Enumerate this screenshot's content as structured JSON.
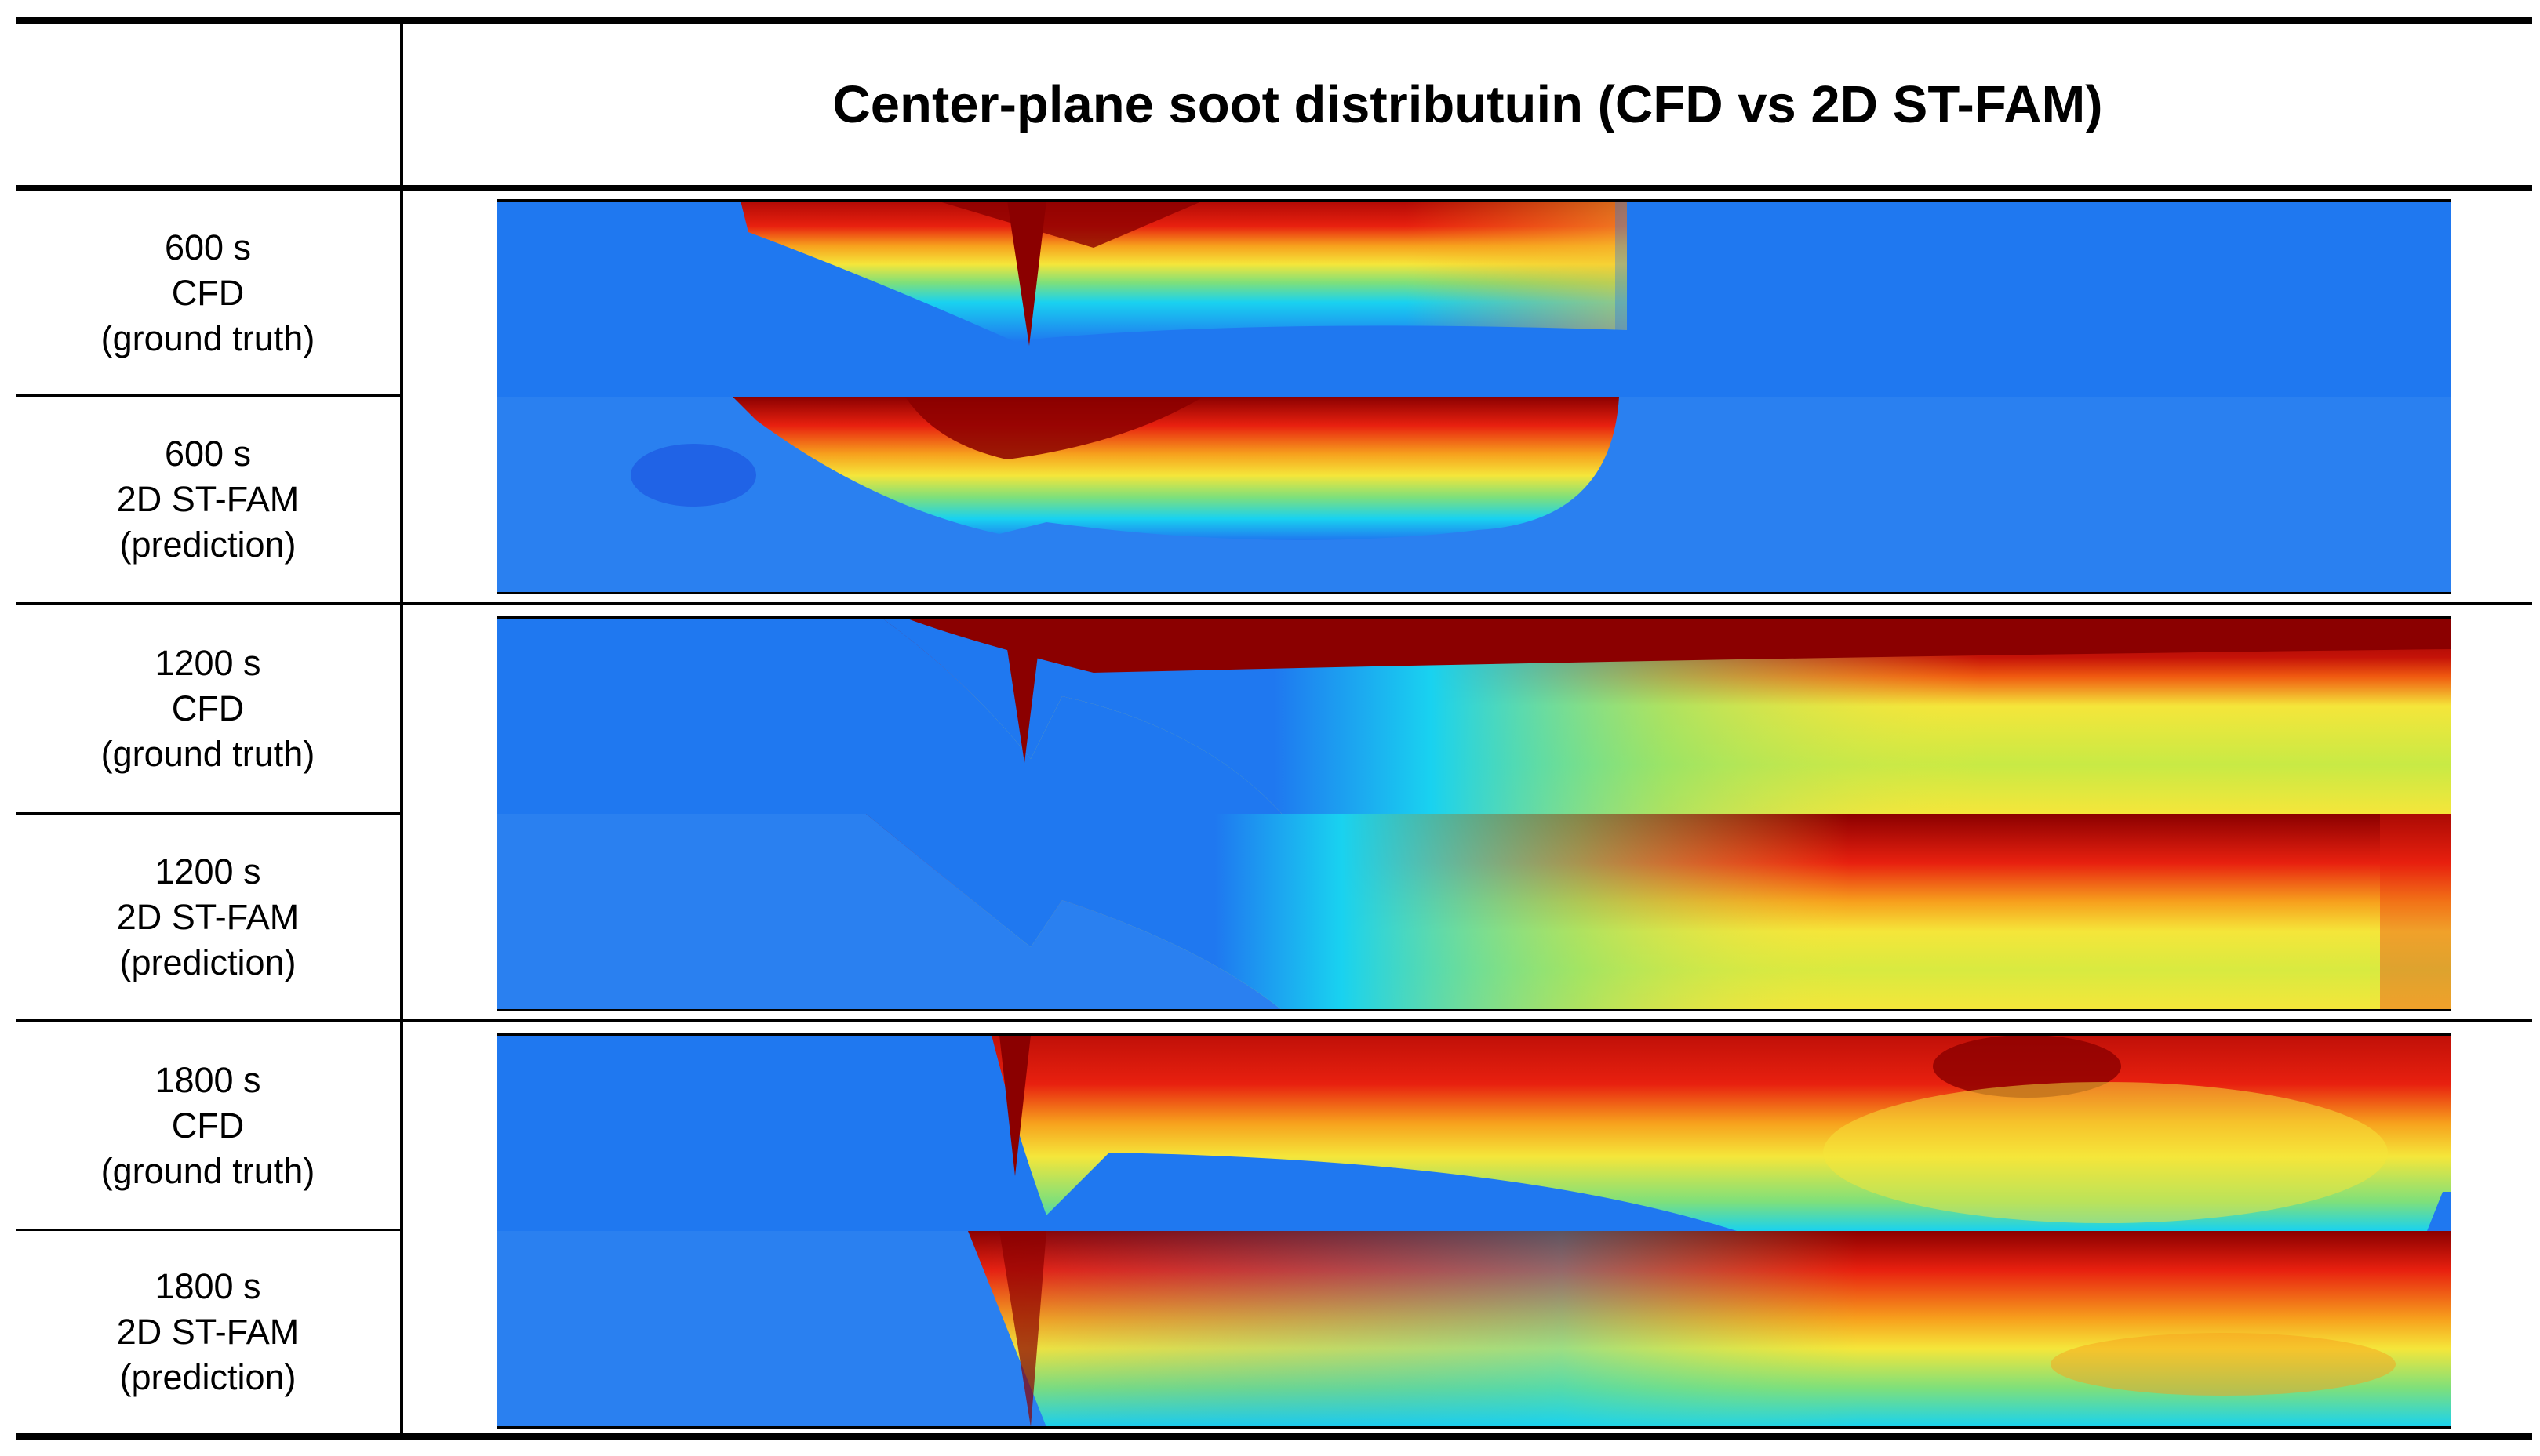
{
  "title": "Center-plane soot distributuin (CFD vs 2D ST-FAM)",
  "rows": [
    {
      "time": "600 s",
      "method": "CFD",
      "kind": "(ground truth)"
    },
    {
      "time": "600 s",
      "method": "2D ST-FAM",
      "kind": "(prediction)"
    },
    {
      "time": "1200 s",
      "method": "CFD",
      "kind": "(ground truth)"
    },
    {
      "time": "1200 s",
      "method": "2D ST-FAM",
      "kind": "(prediction)"
    },
    {
      "time": "1800 s",
      "method": "CFD",
      "kind": "(ground truth)"
    },
    {
      "time": "1800 s",
      "method": "2D ST-FAM",
      "kind": "(prediction)"
    }
  ],
  "colormap": {
    "low": "#1f78f0",
    "cyan": "#19d2f0",
    "green": "#7fe07a",
    "yellow": "#f5e63a",
    "orange": "#f7a11d",
    "red": "#e8200f",
    "dark_red": "#8b0000"
  }
}
